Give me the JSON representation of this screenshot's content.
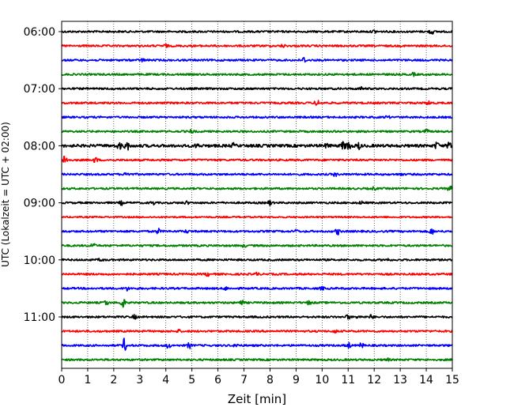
{
  "chart_data": {
    "type": "line",
    "title": "",
    "xlabel": "Zeit  [min]",
    "ylabel": "UTC (Lokalzeit = UTC + 02:00)",
    "xlim": [
      0,
      15
    ],
    "x_ticks": [
      "0",
      "1",
      "2",
      "3",
      "4",
      "5",
      "6",
      "7",
      "8",
      "9",
      "10",
      "11",
      "12",
      "13",
      "14",
      "15"
    ],
    "y_tick_labels": [
      "06:00",
      "07:00",
      "08:00",
      "09:00",
      "10:00",
      "11:00"
    ],
    "vertical_grid": "dotted",
    "trace_interval_minutes": 15,
    "trace_colors": [
      "#000000",
      "#ff0000",
      "#0000ff",
      "#008000"
    ],
    "traces": [
      {
        "start": "06:00",
        "color": "#000000",
        "amplitude": 1.0,
        "events": [
          {
            "t": 12.0,
            "a": 1.5
          },
          {
            "t": 14.2,
            "a": 3.0
          }
        ]
      },
      {
        "start": "06:15",
        "color": "#ff0000",
        "amplitude": 1.0,
        "events": [
          {
            "t": 4.0,
            "a": 1.5
          },
          {
            "t": 8.5,
            "a": 1.5
          }
        ]
      },
      {
        "start": "06:30",
        "color": "#0000ff",
        "amplitude": 1.0,
        "events": [
          {
            "t": 3.1,
            "a": 1.5
          },
          {
            "t": 9.3,
            "a": 3.0
          }
        ]
      },
      {
        "start": "06:45",
        "color": "#008000",
        "amplitude": 1.0,
        "events": [
          {
            "t": 13.5,
            "a": 1.5
          }
        ]
      },
      {
        "start": "07:00",
        "color": "#000000",
        "amplitude": 1.0,
        "events": [
          {
            "t": 11.5,
            "a": 1.5
          }
        ]
      },
      {
        "start": "07:15",
        "color": "#ff0000",
        "amplitude": 1.0,
        "events": [
          {
            "t": 9.8,
            "a": 4.0
          },
          {
            "t": 14.1,
            "a": 2.0
          }
        ]
      },
      {
        "start": "07:30",
        "color": "#0000ff",
        "amplitude": 1.0,
        "events": [
          {
            "t": 12.5,
            "a": 1.5
          }
        ]
      },
      {
        "start": "07:45",
        "color": "#008000",
        "amplitude": 1.0,
        "events": [
          {
            "t": 5.0,
            "a": 2.0
          },
          {
            "t": 14.0,
            "a": 2.0
          }
        ]
      },
      {
        "start": "08:00",
        "color": "#000000",
        "amplitude": 1.5,
        "events": [
          {
            "t": 2.2,
            "a": 4.0
          },
          {
            "t": 2.5,
            "a": 6.0
          },
          {
            "t": 5.2,
            "a": 2.0
          },
          {
            "t": 6.6,
            "a": 2.0
          },
          {
            "t": 10.2,
            "a": 2.5
          },
          {
            "t": 10.8,
            "a": 4.0
          },
          {
            "t": 11.0,
            "a": 6.0
          },
          {
            "t": 11.4,
            "a": 3.5
          },
          {
            "t": 14.4,
            "a": 3.5
          },
          {
            "t": 14.9,
            "a": 5.0
          }
        ]
      },
      {
        "start": "08:15",
        "color": "#ff0000",
        "amplitude": 1.0,
        "events": [
          {
            "t": 0.15,
            "a": 8.0
          },
          {
            "t": 1.3,
            "a": 3.0
          }
        ]
      },
      {
        "start": "08:30",
        "color": "#0000ff",
        "amplitude": 1.0,
        "events": [
          {
            "t": 2.5,
            "a": 3.5
          },
          {
            "t": 10.5,
            "a": 2.0
          },
          {
            "t": 13.0,
            "a": 1.5
          }
        ]
      },
      {
        "start": "08:45",
        "color": "#008000",
        "amplitude": 1.0,
        "events": [
          {
            "t": 12.0,
            "a": 1.5
          },
          {
            "t": 14.9,
            "a": 3.0
          }
        ]
      },
      {
        "start": "09:00",
        "color": "#000000",
        "amplitude": 1.0,
        "events": [
          {
            "t": 2.3,
            "a": 2.0
          },
          {
            "t": 3.5,
            "a": 2.0
          },
          {
            "t": 4.8,
            "a": 1.5
          },
          {
            "t": 8.0,
            "a": 2.5
          },
          {
            "t": 11.5,
            "a": 1.5
          }
        ]
      },
      {
        "start": "09:15",
        "color": "#ff0000",
        "amplitude": 0.8,
        "events": []
      },
      {
        "start": "09:30",
        "color": "#0000ff",
        "amplitude": 1.0,
        "events": [
          {
            "t": 3.7,
            "a": 3.0
          },
          {
            "t": 4.8,
            "a": 1.5
          },
          {
            "t": 9.0,
            "a": 1.5
          },
          {
            "t": 10.6,
            "a": 3.5
          },
          {
            "t": 14.2,
            "a": 3.5
          }
        ]
      },
      {
        "start": "09:45",
        "color": "#008000",
        "amplitude": 1.0,
        "events": [
          {
            "t": 1.2,
            "a": 3.0
          },
          {
            "t": 7.0,
            "a": 1.5
          }
        ]
      },
      {
        "start": "10:00",
        "color": "#000000",
        "amplitude": 1.0,
        "events": [
          {
            "t": 1.5,
            "a": 1.5
          },
          {
            "t": 12.5,
            "a": 1.5
          }
        ]
      },
      {
        "start": "10:15",
        "color": "#ff0000",
        "amplitude": 1.0,
        "events": [
          {
            "t": 5.6,
            "a": 2.0
          },
          {
            "t": 7.5,
            "a": 1.5
          }
        ]
      },
      {
        "start": "10:30",
        "color": "#0000ff",
        "amplitude": 1.0,
        "events": [
          {
            "t": 2.5,
            "a": 2.0
          },
          {
            "t": 6.3,
            "a": 1.5
          },
          {
            "t": 10.0,
            "a": 1.5
          }
        ]
      },
      {
        "start": "10:45",
        "color": "#008000",
        "amplitude": 1.0,
        "events": [
          {
            "t": 1.7,
            "a": 3.0
          },
          {
            "t": 2.35,
            "a": 6.0
          },
          {
            "t": 6.9,
            "a": 3.0
          },
          {
            "t": 9.5,
            "a": 2.0
          }
        ]
      },
      {
        "start": "11:00",
        "color": "#000000",
        "amplitude": 1.0,
        "events": [
          {
            "t": 2.8,
            "a": 2.0
          },
          {
            "t": 11.0,
            "a": 2.5
          },
          {
            "t": 11.4,
            "a": 1.5
          },
          {
            "t": 11.9,
            "a": 2.5
          }
        ]
      },
      {
        "start": "11:15",
        "color": "#ff0000",
        "amplitude": 1.0,
        "events": [
          {
            "t": 4.5,
            "a": 1.5
          },
          {
            "t": 10.5,
            "a": 1.5
          }
        ]
      },
      {
        "start": "11:30",
        "color": "#0000ff",
        "amplitude": 1.0,
        "events": [
          {
            "t": 2.4,
            "a": 7.0
          },
          {
            "t": 4.1,
            "a": 3.0
          },
          {
            "t": 4.9,
            "a": 3.0
          },
          {
            "t": 6.7,
            "a": 2.0
          },
          {
            "t": 11.0,
            "a": 3.5
          },
          {
            "t": 11.5,
            "a": 3.0
          }
        ]
      },
      {
        "start": "11:45",
        "color": "#008000",
        "amplitude": 1.0,
        "events": [
          {
            "t": 12.5,
            "a": 1.5
          }
        ]
      }
    ]
  }
}
